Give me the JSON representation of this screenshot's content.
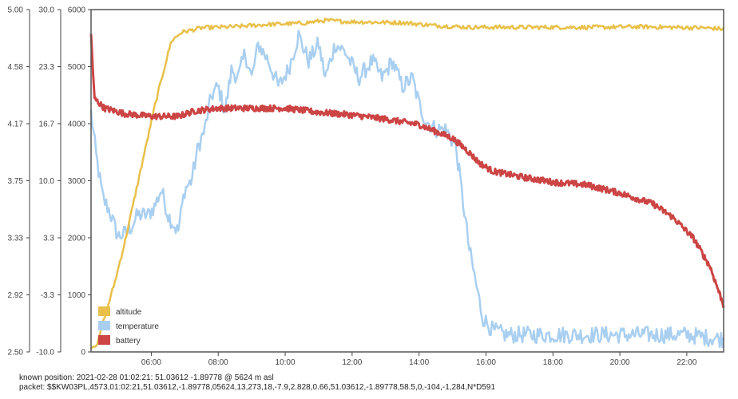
{
  "chart_data": {
    "type": "line",
    "x_axis": {
      "tick_labels": [
        "06:00",
        "08:00",
        "10:00",
        "12:00",
        "14:00",
        "16:00",
        "18:00",
        "20:00",
        "22:00"
      ],
      "tick_hours": [
        6,
        8,
        10,
        12,
        14,
        16,
        18,
        20,
        22
      ],
      "range_hours": [
        4.2,
        23.1
      ]
    },
    "y_axes": [
      {
        "series": "battery",
        "tick_labels": [
          "2.50",
          "2.92",
          "3.33",
          "3.75",
          "4.17",
          "4.58",
          "5.00"
        ],
        "range": [
          2.5,
          5.0
        ]
      },
      {
        "series": "temperature",
        "tick_labels": [
          "-10.0",
          "-3.3",
          "3.3",
          "10.0",
          "16.7",
          "23.3",
          "30.0"
        ],
        "range": [
          -10.0,
          30.0
        ]
      },
      {
        "series": "altitude",
        "tick_labels": [
          "0",
          "1000",
          "2000",
          "3000",
          "4000",
          "5000",
          "6000"
        ],
        "range": [
          0,
          6000
        ]
      }
    ],
    "grid": "off",
    "legend_position": "bottom-left",
    "series": [
      {
        "name": "altitude",
        "axis": "right-inner",
        "color": "#e8c04a",
        "noise": 0.006,
        "points": [
          [
            4.2,
            80
          ],
          [
            4.4,
            150
          ],
          [
            4.6,
            600
          ],
          [
            4.9,
            1200
          ],
          [
            5.2,
            1900
          ],
          [
            5.5,
            2700
          ],
          [
            5.8,
            3500
          ],
          [
            6.1,
            4300
          ],
          [
            6.4,
            5000
          ],
          [
            6.6,
            5450
          ],
          [
            6.9,
            5600
          ],
          [
            7.5,
            5680
          ],
          [
            8.5,
            5700
          ],
          [
            9.5,
            5740
          ],
          [
            10.5,
            5760
          ],
          [
            11.2,
            5810
          ],
          [
            11.8,
            5790
          ],
          [
            12.5,
            5780
          ],
          [
            13.5,
            5770
          ],
          [
            14.5,
            5720
          ],
          [
            15.5,
            5690
          ],
          [
            16.5,
            5690
          ],
          [
            18.0,
            5690
          ],
          [
            19.5,
            5690
          ],
          [
            20.5,
            5700
          ],
          [
            21.5,
            5690
          ],
          [
            22.5,
            5680
          ],
          [
            23.1,
            5660
          ]
        ]
      },
      {
        "name": "temperature",
        "axis": "middle",
        "color": "#a9cff0",
        "noise": 0.025,
        "points": [
          [
            4.2,
            18
          ],
          [
            4.35,
            13
          ],
          [
            4.55,
            8
          ],
          [
            4.75,
            6.5
          ],
          [
            5.0,
            3.5
          ],
          [
            5.3,
            4
          ],
          [
            5.6,
            6
          ],
          [
            5.9,
            6
          ],
          [
            6.1,
            7
          ],
          [
            6.3,
            9
          ],
          [
            6.5,
            6
          ],
          [
            6.8,
            4
          ],
          [
            7.0,
            9
          ],
          [
            7.2,
            10
          ],
          [
            7.4,
            14
          ],
          [
            7.6,
            16
          ],
          [
            7.8,
            20
          ],
          [
            8.0,
            21
          ],
          [
            8.2,
            18
          ],
          [
            8.4,
            23
          ],
          [
            8.6,
            22
          ],
          [
            8.8,
            25
          ],
          [
            9.0,
            22
          ],
          [
            9.2,
            26
          ],
          [
            9.5,
            24
          ],
          [
            9.8,
            21
          ],
          [
            10.1,
            23
          ],
          [
            10.4,
            27
          ],
          [
            10.7,
            24
          ],
          [
            11.0,
            26
          ],
          [
            11.2,
            22
          ],
          [
            11.5,
            26
          ],
          [
            11.8,
            25
          ],
          [
            12.2,
            22
          ],
          [
            12.6,
            24
          ],
          [
            12.9,
            22
          ],
          [
            13.2,
            24
          ],
          [
            13.5,
            21
          ],
          [
            13.8,
            22
          ],
          [
            14.0,
            19
          ],
          [
            14.2,
            17
          ],
          [
            14.5,
            16
          ],
          [
            14.8,
            16
          ],
          [
            15.1,
            14
          ],
          [
            15.3,
            8
          ],
          [
            15.5,
            2
          ],
          [
            15.7,
            -2
          ],
          [
            15.9,
            -6
          ],
          [
            16.2,
            -7.5
          ],
          [
            16.6,
            -8
          ],
          [
            17.2,
            -8
          ],
          [
            18.0,
            -8
          ],
          [
            19.0,
            -8
          ],
          [
            20.0,
            -8
          ],
          [
            21.0,
            -8
          ],
          [
            22.0,
            -8
          ],
          [
            22.6,
            -8.3
          ],
          [
            23.1,
            -8.5
          ]
        ]
      },
      {
        "name": "battery",
        "axis": "outer",
        "color": "#cc4444",
        "noise": 0.009,
        "points": [
          [
            4.2,
            4.82
          ],
          [
            4.3,
            4.35
          ],
          [
            4.6,
            4.28
          ],
          [
            5.2,
            4.24
          ],
          [
            6.0,
            4.22
          ],
          [
            6.8,
            4.22
          ],
          [
            7.3,
            4.26
          ],
          [
            8.0,
            4.28
          ],
          [
            9.0,
            4.28
          ],
          [
            10.0,
            4.28
          ],
          [
            11.0,
            4.25
          ],
          [
            12.0,
            4.23
          ],
          [
            13.0,
            4.2
          ],
          [
            14.0,
            4.16
          ],
          [
            14.6,
            4.1
          ],
          [
            15.0,
            4.06
          ],
          [
            15.4,
            3.98
          ],
          [
            15.8,
            3.88
          ],
          [
            16.2,
            3.82
          ],
          [
            17.0,
            3.78
          ],
          [
            18.0,
            3.74
          ],
          [
            19.0,
            3.72
          ],
          [
            20.0,
            3.66
          ],
          [
            21.0,
            3.58
          ],
          [
            21.6,
            3.48
          ],
          [
            22.2,
            3.33
          ],
          [
            22.7,
            3.12
          ],
          [
            23.1,
            2.84
          ]
        ]
      }
    ]
  },
  "status": {
    "known_position": "known position: 2021-02-28 01:02:21: 51.03612 -1.89778 @ 5624 m asl",
    "packet": "packet: $$KW03PL,4573,01:02:21,51.03612,-1.89778,05624,13,273,18,-7.9,2.828,0.66,51.03612,-1.89778,58.5,0,-104,-1,284,N*D591"
  },
  "colors": {
    "axis": "#444444",
    "frame": "#555555"
  }
}
